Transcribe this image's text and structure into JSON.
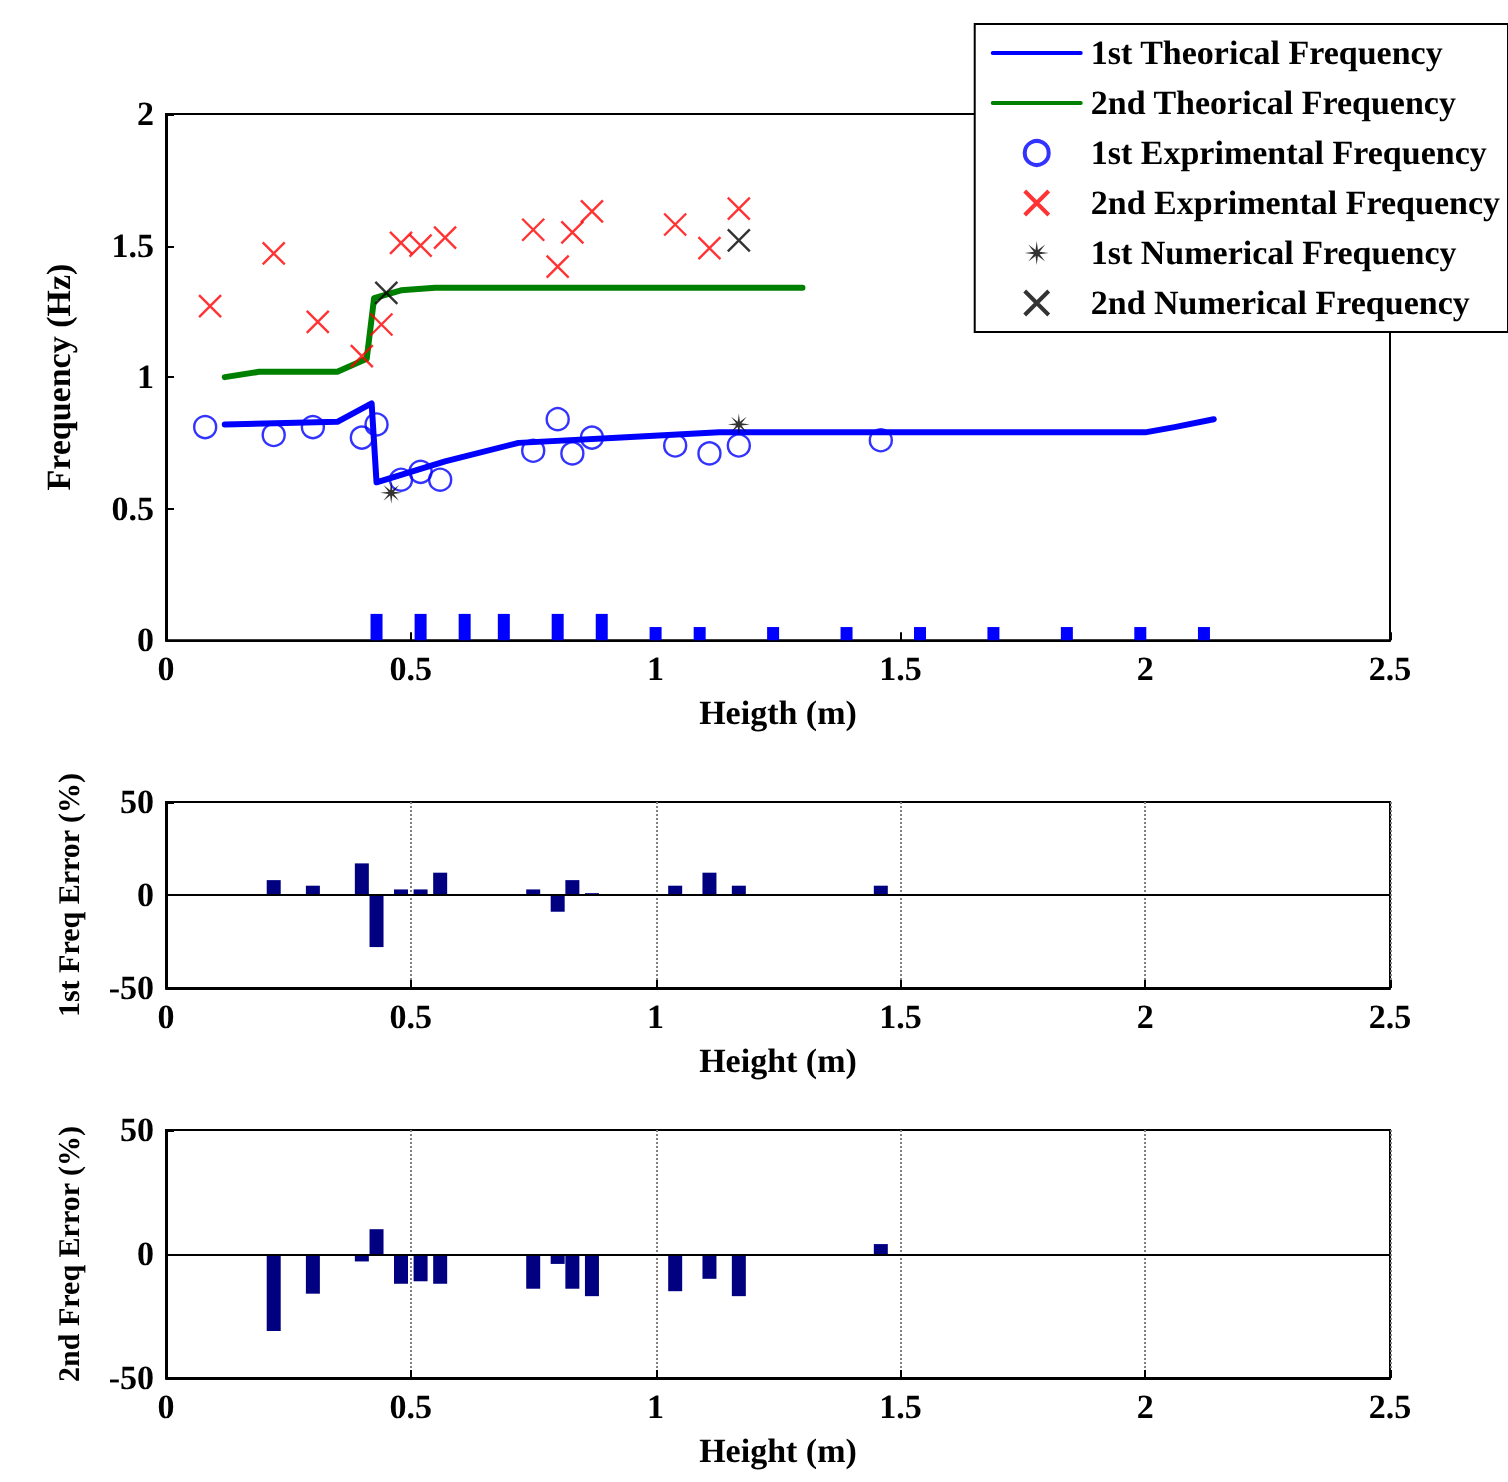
{
  "chart_data": [
    {
      "type": "line",
      "xlabel": "Heigth (m)",
      "ylabel": "Frequency (Hz)",
      "xlim": [
        0,
        2.5
      ],
      "xticks": [
        0,
        0.5,
        1,
        1.5,
        2,
        2.5
      ],
      "ylim": [
        0,
        2
      ],
      "yticks": [
        0,
        0.5,
        1,
        1.5,
        2
      ],
      "legend": "top right",
      "series": [
        {
          "name": "1st Theorical Frequency",
          "color": "#0000ff",
          "x": [
            0.12,
            0.35,
            0.42,
            0.43,
            0.5,
            0.57,
            0.72,
            0.93,
            1.13,
            2.0,
            2.06,
            2.14
          ],
          "values": [
            0.82,
            0.83,
            0.9,
            0.6,
            0.64,
            0.68,
            0.75,
            0.77,
            0.79,
            0.79,
            0.81,
            0.84
          ]
        },
        {
          "name": "2nd Theorical Frequency",
          "color": "#008000",
          "x": [
            0.12,
            0.19,
            0.35,
            0.41,
            0.425,
            0.48,
            0.55,
            1.3
          ],
          "values": [
            1.0,
            1.02,
            1.02,
            1.07,
            1.3,
            1.33,
            1.34,
            1.34
          ]
        },
        {
          "type": "bar",
          "color": "#0000ff",
          "x": [
            0.43,
            0.52,
            0.61,
            0.69,
            0.8,
            0.89,
            1.0,
            1.09,
            1.24,
            1.39,
            1.54,
            1.69,
            1.84,
            1.99,
            2.12
          ],
          "values": [
            0.1,
            0.1,
            0.1,
            0.1,
            0.1,
            0.1,
            0.05,
            0.05,
            0.05,
            0.05,
            0.05,
            0.05,
            0.05,
            0.05,
            0.05
          ]
        },
        {
          "name": "1st Exprimental Frequency",
          "type": "scatter",
          "marker": "circle",
          "color": "#0000ff",
          "x": [
            0.08,
            0.22,
            0.3,
            0.4,
            0.43,
            0.48,
            0.52,
            0.56,
            0.75,
            0.8,
            0.83,
            0.87,
            1.04,
            1.11,
            1.17,
            1.46
          ],
          "values": [
            0.81,
            0.78,
            0.81,
            0.77,
            0.82,
            0.61,
            0.64,
            0.61,
            0.72,
            0.84,
            0.71,
            0.77,
            0.74,
            0.71,
            0.74,
            0.76
          ]
        },
        {
          "name": "2nd Exprimental Frequency",
          "type": "scatter",
          "marker": "cross",
          "color": "#ff0000",
          "x": [
            0.09,
            0.22,
            0.31,
            0.4,
            0.44,
            0.48,
            0.52,
            0.57,
            0.75,
            0.8,
            0.83,
            0.87,
            1.04,
            1.11,
            1.17
          ],
          "values": [
            1.27,
            1.47,
            1.21,
            1.08,
            1.2,
            1.51,
            1.5,
            1.53,
            1.56,
            1.42,
            1.55,
            1.63,
            1.58,
            1.49,
            1.64
          ]
        },
        {
          "name": "1st Numerical Frequency",
          "type": "scatter",
          "marker": "star",
          "color": "#000000",
          "x": [
            0.46,
            1.17
          ],
          "values": [
            0.56,
            0.82
          ]
        },
        {
          "name": "2nd Numerical Frequency",
          "type": "scatter",
          "marker": "cross",
          "color": "#000000",
          "x": [
            0.45,
            1.17
          ],
          "values": [
            1.32,
            1.52
          ]
        }
      ]
    },
    {
      "type": "bar",
      "xlabel": "Height (m)",
      "ylabel": "1st Freq Error (%)",
      "xlim": [
        0,
        2.5
      ],
      "xticks": [
        0,
        0.5,
        1,
        1.5,
        2,
        2.5
      ],
      "ylim": [
        -50,
        50
      ],
      "yticks": [
        -50,
        0,
        50
      ],
      "grid": "x",
      "color": "#000080",
      "ref_lines": [
        {
          "axis": "y",
          "value": 0,
          "color": "#000000"
        }
      ],
      "x": [
        0.08,
        0.22,
        0.3,
        0.4,
        0.43,
        0.48,
        0.52,
        0.56,
        0.75,
        0.8,
        0.83,
        0.87,
        1.04,
        1.11,
        1.17,
        1.46
      ],
      "values": [
        0,
        8,
        5,
        17,
        -28,
        3,
        3,
        12,
        3,
        -9,
        8,
        1,
        5,
        12,
        5,
        5
      ]
    },
    {
      "type": "bar",
      "xlabel": "Height (m)",
      "ylabel": "2nd Freq Error (%)",
      "xlim": [
        0,
        2.5
      ],
      "xticks": [
        0,
        0.5,
        1,
        1.5,
        2,
        2.5
      ],
      "ylim": [
        -50,
        50
      ],
      "yticks": [
        -50,
        0,
        50
      ],
      "grid": "x",
      "color": "#000080",
      "ref_lines": [
        {
          "axis": "y",
          "value": 0,
          "color": "#000000"
        }
      ],
      "x": [
        0.08,
        0.22,
        0.3,
        0.4,
        0.43,
        0.48,
        0.52,
        0.56,
        0.75,
        0.8,
        0.83,
        0.87,
        1.04,
        1.11,
        1.17,
        1.46
      ],
      "values": [
        0,
        -31,
        -16,
        -3,
        10,
        -12,
        -11,
        -12,
        -14,
        -4,
        -14,
        -17,
        -15,
        -10,
        -17,
        4
      ]
    }
  ]
}
